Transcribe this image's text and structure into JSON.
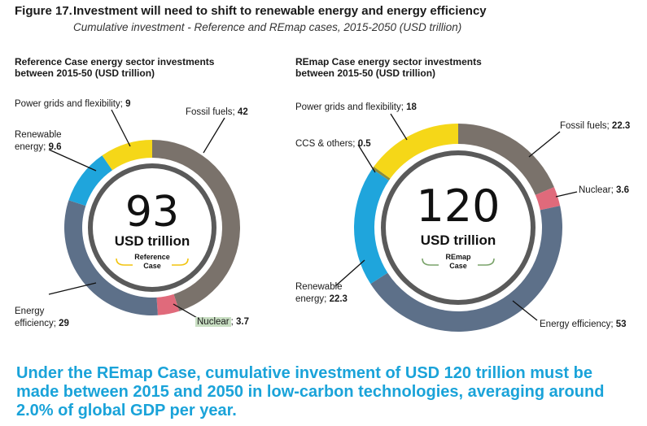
{
  "figure": {
    "number": "Figure 17.",
    "title": "Investment will need to shift to renewable energy and energy efficiency",
    "subtitle": "Cumulative investment - Reference and REmap cases, 2015-2050 (USD trillion)"
  },
  "chart_data": [
    {
      "type": "pie",
      "title": "Reference Case energy sector investments between 2015-50 (USD trillion)",
      "total": "93",
      "total_unit": "USD trillion",
      "case_label": "Reference Case",
      "slices": [
        {
          "name": "Fossil fuels",
          "value": 42,
          "color": "#7a726b"
        },
        {
          "name": "Nuclear",
          "value": 3.7,
          "color": "#e06a7b"
        },
        {
          "name": "Energy efficiency",
          "value": 29,
          "color": "#5d7089"
        },
        {
          "name": "Renewable energy",
          "value": 9.6,
          "color": "#1fa5dc"
        },
        {
          "name": "Power grids and flexibility",
          "value": 9,
          "color": "#f5d718"
        }
      ]
    },
    {
      "type": "pie",
      "title": "REmap Case energy sector investments between 2015-50 (USD trillion)",
      "total": "120",
      "total_unit": "USD trillion",
      "case_label": "REmap Case",
      "slices": [
        {
          "name": "Fossil fuels",
          "value": 22.3,
          "color": "#7a726b"
        },
        {
          "name": "Nuclear",
          "value": 3.6,
          "color": "#e06a7b"
        },
        {
          "name": "Energy efficiency",
          "value": 53,
          "color": "#5d7089"
        },
        {
          "name": "Renewable energy",
          "value": 22.3,
          "color": "#1fa5dc"
        },
        {
          "name": "CCS & others",
          "value": 0.5,
          "color": "#8c8c3a"
        },
        {
          "name": "Power grids and flexibility",
          "value": 18,
          "color": "#f5d718"
        }
      ]
    }
  ],
  "labels": {
    "ref": {
      "grids_text": "Power grids and flexibility; ",
      "grids_val": "9",
      "fossil_text": "Fossil fuels; ",
      "fossil_val": "42",
      "ren_line1": "Renewable",
      "ren_line2": "energy; ",
      "ren_val": "9.6",
      "eff_line1": "Energy",
      "eff_line2": "efficiency; ",
      "eff_val": "29",
      "nuc_text": "Nuclear",
      "nuc_sep": "; ",
      "nuc_val": "3.7"
    },
    "remap": {
      "grids_text": "Power grids and flexibility; ",
      "grids_val": "18",
      "ccs_text": "CCS & others; ",
      "ccs_val": "0.5",
      "fossil_text": "Fossil fuels; ",
      "fossil_val": "22.3",
      "nuc_text": "Nuclear; ",
      "nuc_val": "3.6",
      "ren_line1": "Renewable",
      "ren_line2": "energy; ",
      "ren_val": "22.3",
      "eff_text": "Energy efficiency; ",
      "eff_val": "53"
    }
  },
  "conclusion": "Under the REmap Case, cumulative investment of USD 120 trillion must be made between 2015 and 2050 in low-carbon technologies, averaging around 2.0% of global GDP per year.",
  "colors": {
    "conclusion": "#1aa3d9",
    "ref_bracket": "#f2c40f",
    "remap_bracket": "#7aa36a",
    "inner_ring": "#5a5a5a"
  }
}
